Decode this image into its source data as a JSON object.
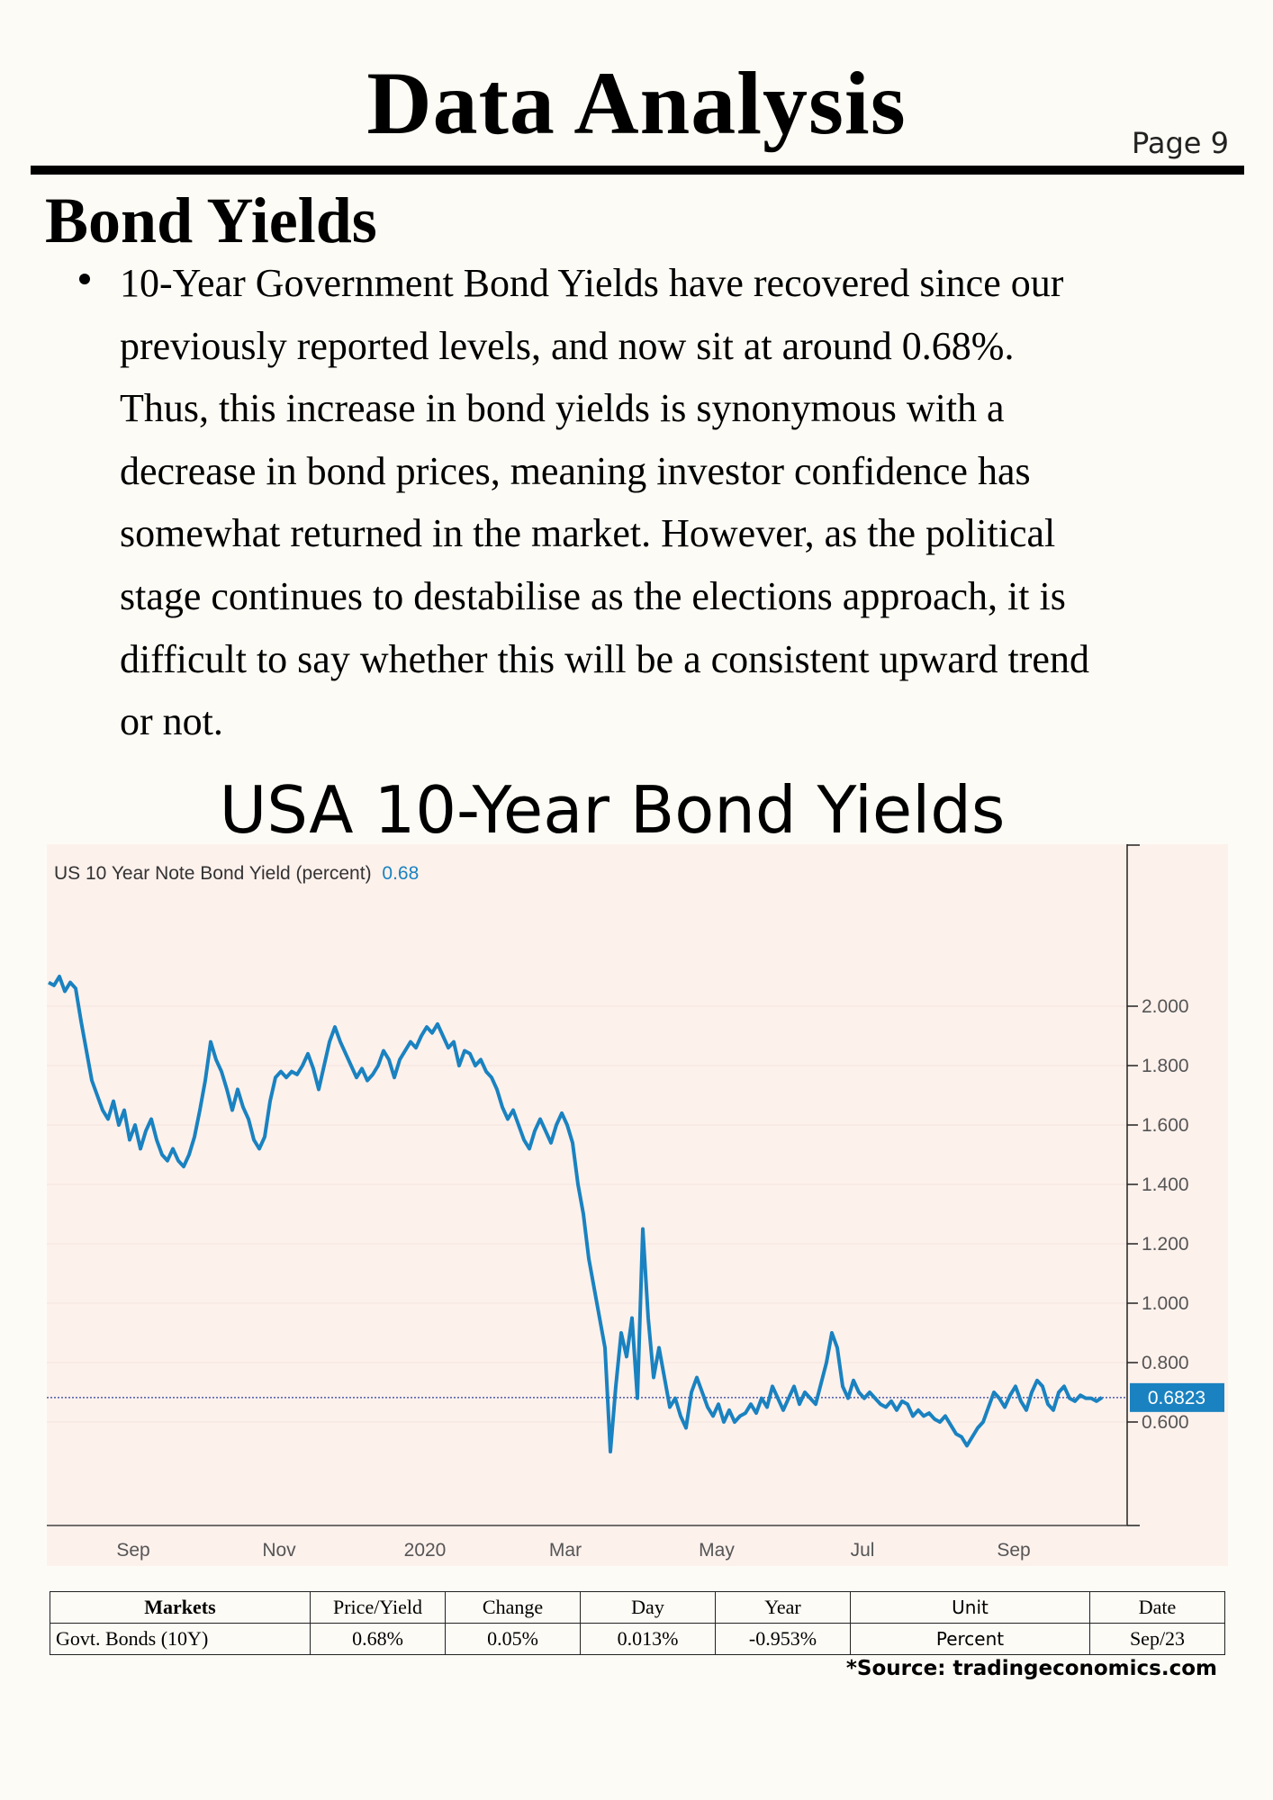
{
  "page": {
    "title": "Data Analysis",
    "page_number": "Page 9",
    "section_heading": "Bond Yields",
    "bullet_text": "10-Year Government Bond Yields have recovered since our\npreviously reported levels, and now sit at around 0.68%.\nThus, this increase in bond yields is synonymous with a\ndecrease in bond prices, meaning investor confidence has\nsomewhat returned in the market. However, as the political\nstage continues to destabilise as the elections approach, it is\ndifficult to say whether this will be a consistent upward trend\nor not.",
    "chart_title": "USA 10-Year Bond Yields",
    "source": "*Source: tradingeconomics.com"
  },
  "chart_data": {
    "type": "line",
    "legend_label": "US 10 Year Note Bond Yield (percent)",
    "legend_value": "0.68",
    "current_value_label": "0.6823",
    "current_value": 0.6823,
    "y_ticks": [
      2.0,
      1.8,
      1.6,
      1.4,
      1.2,
      1.0,
      0.8,
      0.6
    ],
    "y_tick_labels": [
      "2.000",
      "1.800",
      "1.600",
      "1.400",
      "1.200",
      "1.000",
      "0.800",
      "0.600"
    ],
    "ylim": [
      0.4,
      2.2
    ],
    "x_tick_labels": [
      "Sep",
      "Nov",
      "2020",
      "Mar",
      "May",
      "Jul",
      "Sep"
    ],
    "x_tick_positions": [
      0.08,
      0.215,
      0.35,
      0.48,
      0.62,
      0.755,
      0.895
    ],
    "series": [
      {
        "values": [
          2.08,
          2.07,
          2.1,
          2.05,
          2.08,
          2.06,
          1.95,
          1.85,
          1.75,
          1.7,
          1.65,
          1.62,
          1.68,
          1.6,
          1.65,
          1.55,
          1.6,
          1.52,
          1.58,
          1.62,
          1.55,
          1.5,
          1.48,
          1.52,
          1.48,
          1.46,
          1.5,
          1.56,
          1.65,
          1.75,
          1.88,
          1.82,
          1.78,
          1.72,
          1.65,
          1.72,
          1.66,
          1.62,
          1.55,
          1.52,
          1.56,
          1.68,
          1.76,
          1.78,
          1.76,
          1.78,
          1.77,
          1.8,
          1.84,
          1.79,
          1.72,
          1.8,
          1.88,
          1.93,
          1.88,
          1.84,
          1.8,
          1.76,
          1.79,
          1.75,
          1.77,
          1.8,
          1.85,
          1.82,
          1.76,
          1.82,
          1.85,
          1.88,
          1.86,
          1.9,
          1.93,
          1.91,
          1.94,
          1.9,
          1.86,
          1.88,
          1.8,
          1.85,
          1.84,
          1.8,
          1.82,
          1.78,
          1.76,
          1.72,
          1.66,
          1.62,
          1.65,
          1.6,
          1.55,
          1.52,
          1.58,
          1.62,
          1.58,
          1.54,
          1.6,
          1.64,
          1.6,
          1.54,
          1.4,
          1.3,
          1.15,
          1.05,
          0.95,
          0.85,
          0.5,
          0.72,
          0.9,
          0.82,
          0.95,
          0.68,
          1.25,
          0.95,
          0.75,
          0.85,
          0.75,
          0.65,
          0.68,
          0.62,
          0.58,
          0.7,
          0.75,
          0.7,
          0.65,
          0.62,
          0.66,
          0.6,
          0.64,
          0.6,
          0.62,
          0.63,
          0.66,
          0.63,
          0.68,
          0.65,
          0.72,
          0.68,
          0.64,
          0.68,
          0.72,
          0.66,
          0.7,
          0.68,
          0.66,
          0.73,
          0.8,
          0.9,
          0.85,
          0.72,
          0.68,
          0.74,
          0.7,
          0.68,
          0.7,
          0.68,
          0.66,
          0.65,
          0.67,
          0.64,
          0.67,
          0.66,
          0.62,
          0.64,
          0.62,
          0.63,
          0.61,
          0.6,
          0.62,
          0.59,
          0.56,
          0.55,
          0.52,
          0.55,
          0.58,
          0.6,
          0.65,
          0.7,
          0.68,
          0.65,
          0.69,
          0.72,
          0.67,
          0.64,
          0.7,
          0.74,
          0.72,
          0.66,
          0.64,
          0.7,
          0.72,
          0.68,
          0.67,
          0.69,
          0.68,
          0.68,
          0.67,
          0.6823
        ]
      }
    ],
    "grid": true,
    "line_color": "#1a82c0",
    "background": "#fdf1ec"
  },
  "table": {
    "headers": [
      "Markets",
      "Price/Yield",
      "Change",
      "Day",
      "Year",
      "Unit",
      "Date"
    ],
    "row": [
      "Govt. Bonds (10Y)",
      "0.68%",
      "0.05%",
      "0.013%",
      "-0.953%",
      "Percent",
      "Sep/23"
    ]
  }
}
